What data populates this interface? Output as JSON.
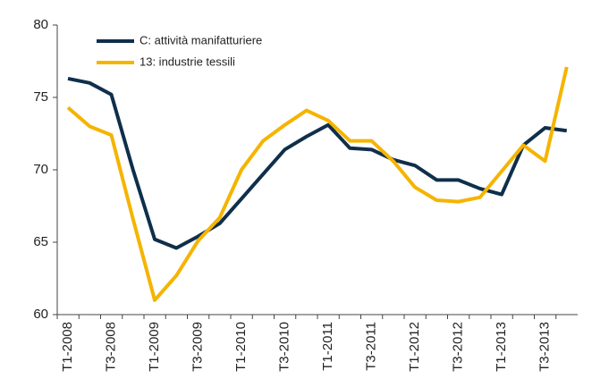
{
  "chart_data": {
    "type": "line",
    "categories": [
      "T1-2008",
      null,
      "T3-2008",
      null,
      "T1-2009",
      null,
      "T3-2009",
      null,
      "T1-2010",
      null,
      "T3-2010",
      null,
      "T1-2011",
      null,
      "T3-2011",
      null,
      "T1-2012",
      null,
      "T3-2012",
      null,
      "T1-2013",
      null,
      "T3-2013",
      null
    ],
    "series": [
      {
        "name": "C: attività manifatturiere",
        "color": "#0f2f4b",
        "values": [
          76.3,
          76.0,
          75.2,
          70.0,
          65.2,
          64.6,
          65.4,
          66.3,
          68.0,
          69.7,
          71.4,
          72.3,
          73.1,
          71.5,
          71.4,
          70.7,
          70.3,
          69.3,
          69.3,
          68.7,
          68.3,
          71.7,
          72.9,
          72.7
        ]
      },
      {
        "name": "13: industrie tessili",
        "color": "#f5b400",
        "values": [
          74.3,
          73.0,
          72.4,
          66.6,
          61.0,
          62.7,
          65.1,
          66.7,
          70.0,
          72.0,
          73.1,
          74.1,
          73.4,
          72.0,
          72.0,
          70.6,
          68.8,
          67.9,
          67.8,
          68.1,
          69.9,
          71.7,
          70.6,
          77.1
        ]
      }
    ],
    "ylim": [
      60,
      80
    ],
    "yticks": [
      60,
      65,
      70,
      75,
      80
    ],
    "legend": "upper left"
  }
}
